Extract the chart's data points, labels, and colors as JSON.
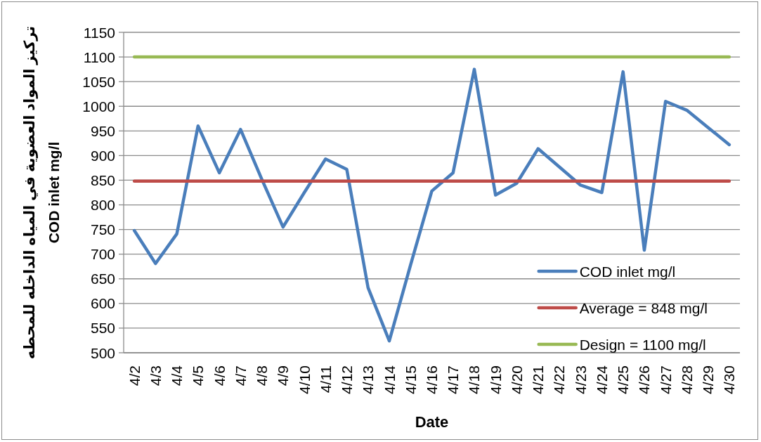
{
  "chart_data": {
    "type": "line",
    "xlabel": "Date",
    "ylabel": "تركيز المواد العضوية في المياه الداخله للمحطه\nCOD inlet mg/l",
    "categories": [
      "4/2",
      "4/3",
      "4/4",
      "4/5",
      "4/6",
      "4/7",
      "4/8",
      "4/9",
      "4/10",
      "4/11",
      "4/12",
      "4/13",
      "4/14",
      "4/15",
      "4/16",
      "4/17",
      "4/18",
      "4/19",
      "4/20",
      "4/21",
      "4/22",
      "4/23",
      "4/24",
      "4/25",
      "4/26",
      "4/27",
      "4/28",
      "4/29",
      "4/30"
    ],
    "series": [
      {
        "name": "COD inlet mg/l",
        "color": "#4a7ebb",
        "values": [
          748,
          681,
          741,
          960,
          865,
          953,
          852,
          755,
          825,
          893,
          872,
          632,
          524,
          678,
          828,
          865,
          1075,
          820,
          844,
          914,
          877,
          840,
          825,
          1070,
          708,
          1010,
          992,
          957,
          922
        ]
      },
      {
        "name": "Average = 848 mg/l",
        "color": "#be4b48",
        "values": [
          848,
          848,
          848,
          848,
          848,
          848,
          848,
          848,
          848,
          848,
          848,
          848,
          848,
          848,
          848,
          848,
          848,
          848,
          848,
          848,
          848,
          848,
          848,
          848,
          848,
          848,
          848,
          848,
          848
        ]
      },
      {
        "name": "Design = 1100 mg/l",
        "color": "#98b954",
        "values": [
          1100,
          1100,
          1100,
          1100,
          1100,
          1100,
          1100,
          1100,
          1100,
          1100,
          1100,
          1100,
          1100,
          1100,
          1100,
          1100,
          1100,
          1100,
          1100,
          1100,
          1100,
          1100,
          1100,
          1100,
          1100,
          1100,
          1100,
          1100,
          1100
        ]
      }
    ],
    "ylim": [
      500,
      1150
    ],
    "yticks": [
      500,
      550,
      600,
      650,
      700,
      750,
      800,
      850,
      900,
      950,
      1000,
      1050,
      1100,
      1150
    ],
    "grid": "y",
    "legend": "bottom right",
    "marker": "none",
    "line_style": "solid"
  }
}
